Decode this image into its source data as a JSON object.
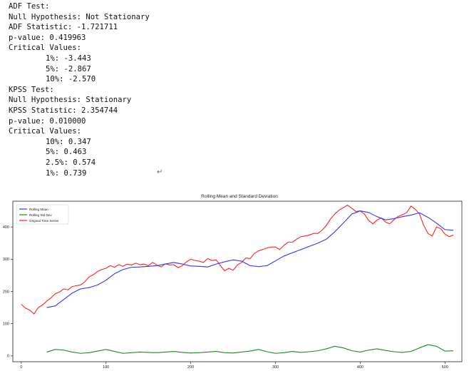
{
  "console": {
    "adf_header": "ADF Test:",
    "adf_null": "Null Hypothesis: Not Stationary",
    "adf_stat": "ADF Statistic: -1.721711",
    "adf_p": "p-value: 0.419963",
    "adf_cv_header": "Critical Values:",
    "adf_cv": [
      "1%: -3.443",
      "5%: -2.867",
      "10%: -2.570"
    ],
    "kpss_header": "KPSS Test:",
    "kpss_null": "Null Hypothesis: Stationary",
    "kpss_stat": "KPSS Statistic: 2.354744",
    "kpss_p": "p-value: 0.010000",
    "kpss_cv_header": "Critical Values:",
    "kpss_cv": [
      "10%: 0.347",
      "5%: 0.463",
      "2.5%: 0.574",
      "1%: 0.739"
    ]
  },
  "return_mark": "↵",
  "chart_data": {
    "type": "line",
    "title": "Rolling Mean and Standard Deviation",
    "xlabel": "",
    "ylabel": "",
    "xlim": [
      -10,
      520
    ],
    "ylim": [
      -18,
      480
    ],
    "xticks": [
      0,
      100,
      200,
      300,
      400,
      500
    ],
    "yticks": [
      0,
      100,
      200,
      300,
      400
    ],
    "grid": false,
    "legend_position": "top-left",
    "series": [
      {
        "name": "Rolling Mean",
        "color": "#3333ff",
        "x": [
          30,
          40,
          50,
          60,
          70,
          80,
          90,
          100,
          110,
          120,
          130,
          140,
          150,
          160,
          170,
          180,
          190,
          200,
          210,
          220,
          230,
          240,
          250,
          260,
          270,
          280,
          290,
          300,
          310,
          320,
          330,
          340,
          350,
          360,
          370,
          380,
          390,
          400,
          410,
          420,
          430,
          440,
          450,
          460,
          470,
          480,
          490,
          500,
          510
        ],
        "values": [
          150,
          155,
          175,
          195,
          208,
          212,
          220,
          235,
          255,
          268,
          275,
          276,
          278,
          280,
          285,
          290,
          285,
          279,
          278,
          276,
          285,
          292,
          298,
          294,
          280,
          277,
          280,
          295,
          310,
          320,
          330,
          340,
          350,
          362,
          385,
          412,
          440,
          450,
          445,
          432,
          422,
          426,
          432,
          437,
          444,
          430,
          412,
          392,
          390
        ]
      },
      {
        "name": "Rolling Std Dev",
        "color": "#228822",
        "x": [
          30,
          40,
          50,
          60,
          70,
          80,
          90,
          100,
          110,
          120,
          130,
          140,
          150,
          160,
          170,
          180,
          190,
          200,
          210,
          220,
          230,
          240,
          250,
          260,
          270,
          280,
          290,
          300,
          310,
          320,
          330,
          340,
          350,
          360,
          370,
          380,
          390,
          400,
          410,
          420,
          430,
          440,
          450,
          460,
          470,
          480,
          490,
          500,
          510
        ],
        "values": [
          12,
          20,
          18,
          12,
          8,
          10,
          15,
          20,
          14,
          8,
          10,
          12,
          11,
          10,
          12,
          14,
          11,
          9,
          10,
          12,
          14,
          10,
          9,
          12,
          15,
          20,
          13,
          8,
          10,
          14,
          11,
          13,
          16,
          22,
          30,
          25,
          16,
          12,
          18,
          22,
          17,
          13,
          11,
          14,
          25,
          35,
          30,
          15,
          16
        ]
      },
      {
        "name": "Original Time Series",
        "color": "#ff2222",
        "x": [
          0,
          5,
          10,
          15,
          20,
          25,
          30,
          35,
          40,
          45,
          50,
          55,
          60,
          65,
          70,
          75,
          80,
          85,
          90,
          95,
          100,
          105,
          110,
          115,
          120,
          125,
          130,
          135,
          140,
          145,
          150,
          155,
          160,
          165,
          170,
          175,
          180,
          185,
          190,
          195,
          200,
          205,
          210,
          215,
          220,
          225,
          230,
          235,
          240,
          245,
          250,
          255,
          260,
          265,
          270,
          275,
          280,
          285,
          290,
          295,
          300,
          305,
          310,
          315,
          320,
          325,
          330,
          335,
          340,
          345,
          350,
          355,
          360,
          365,
          370,
          375,
          380,
          385,
          390,
          395,
          400,
          405,
          410,
          415,
          420,
          425,
          430,
          435,
          440,
          445,
          450,
          455,
          460,
          465,
          470,
          475,
          480,
          485,
          490,
          495,
          500,
          505,
          510
        ],
        "values": [
          160,
          148,
          142,
          130,
          150,
          158,
          170,
          180,
          193,
          198,
          208,
          205,
          215,
          218,
          220,
          230,
          245,
          252,
          262,
          268,
          272,
          280,
          275,
          283,
          278,
          285,
          282,
          288,
          283,
          285,
          280,
          290,
          282,
          276,
          286,
          282,
          283,
          274,
          280,
          292,
          300,
          296,
          294,
          290,
          302,
          296,
          298,
          280,
          264,
          272,
          266,
          282,
          290,
          304,
          302,
          318,
          326,
          330,
          335,
          338,
          338,
          330,
          343,
          353,
          353,
          362,
          370,
          372,
          375,
          380,
          380,
          390,
          405,
          425,
          440,
          452,
          460,
          468,
          458,
          448,
          450,
          440,
          420,
          410,
          422,
          428,
          415,
          410,
          423,
          433,
          438,
          445,
          465,
          455,
          440,
          405,
          380,
          372,
          400,
          395,
          378,
          370,
          375
        ]
      }
    ]
  }
}
